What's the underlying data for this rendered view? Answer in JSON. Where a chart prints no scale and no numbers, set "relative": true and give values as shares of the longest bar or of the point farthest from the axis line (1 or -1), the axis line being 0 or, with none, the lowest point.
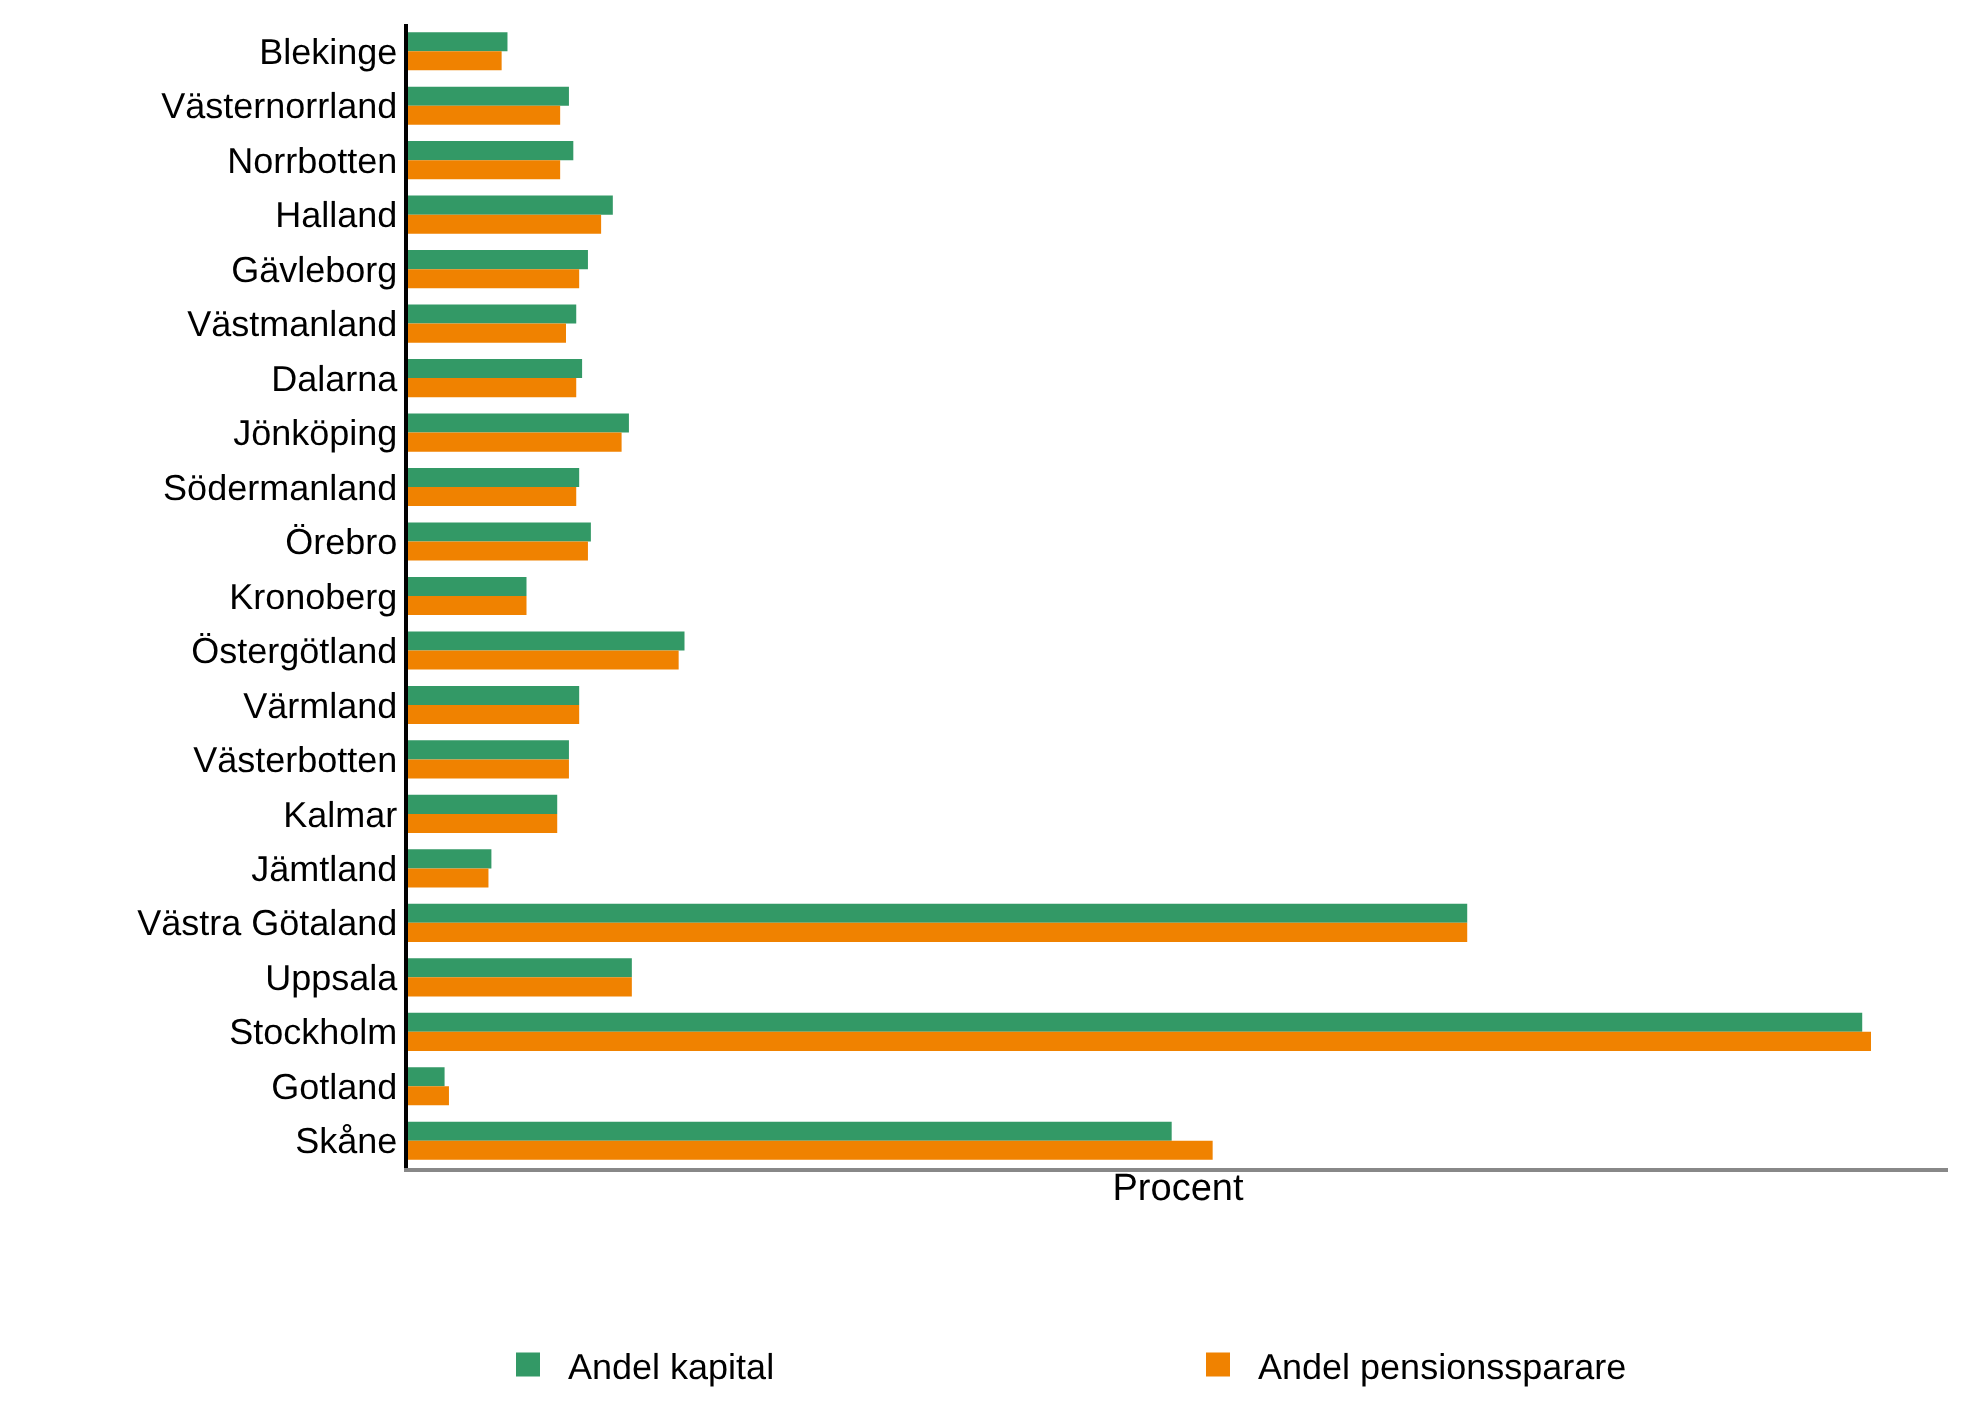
{
  "chart_data": {
    "type": "bar",
    "orientation": "horizontal",
    "xlabel": "Procent",
    "relative": true,
    "categories": [
      "Blekinge",
      "Västernorrland",
      "Norrbotten",
      "Halland",
      "Gävleborg",
      "Västmanland",
      "Dalarna",
      "Jönköping",
      "Södermanland",
      "Örebro",
      "Kronoberg",
      "Östergötland",
      "Värmland",
      "Västerbotten",
      "Kalmar",
      "Jämtland",
      "Västra Götaland",
      "Uppsala",
      "Stockholm",
      "Gotland",
      "Skåne"
    ],
    "series": [
      {
        "name": "Andel kapital",
        "color": "#339966",
        "values": [
          0.068,
          0.11,
          0.113,
          0.14,
          0.123,
          0.115,
          0.119,
          0.151,
          0.117,
          0.125,
          0.081,
          0.189,
          0.117,
          0.11,
          0.102,
          0.057,
          0.724,
          0.153,
          0.994,
          0.025,
          0.522
        ]
      },
      {
        "name": "Andel pensionssparare",
        "color": "#f08200",
        "values": [
          0.064,
          0.104,
          0.104,
          0.132,
          0.117,
          0.108,
          0.115,
          0.146,
          0.115,
          0.123,
          0.081,
          0.185,
          0.117,
          0.11,
          0.102,
          0.055,
          0.724,
          0.153,
          1,
          0.028,
          0.55
        ]
      }
    ],
    "legend": "bottom"
  }
}
